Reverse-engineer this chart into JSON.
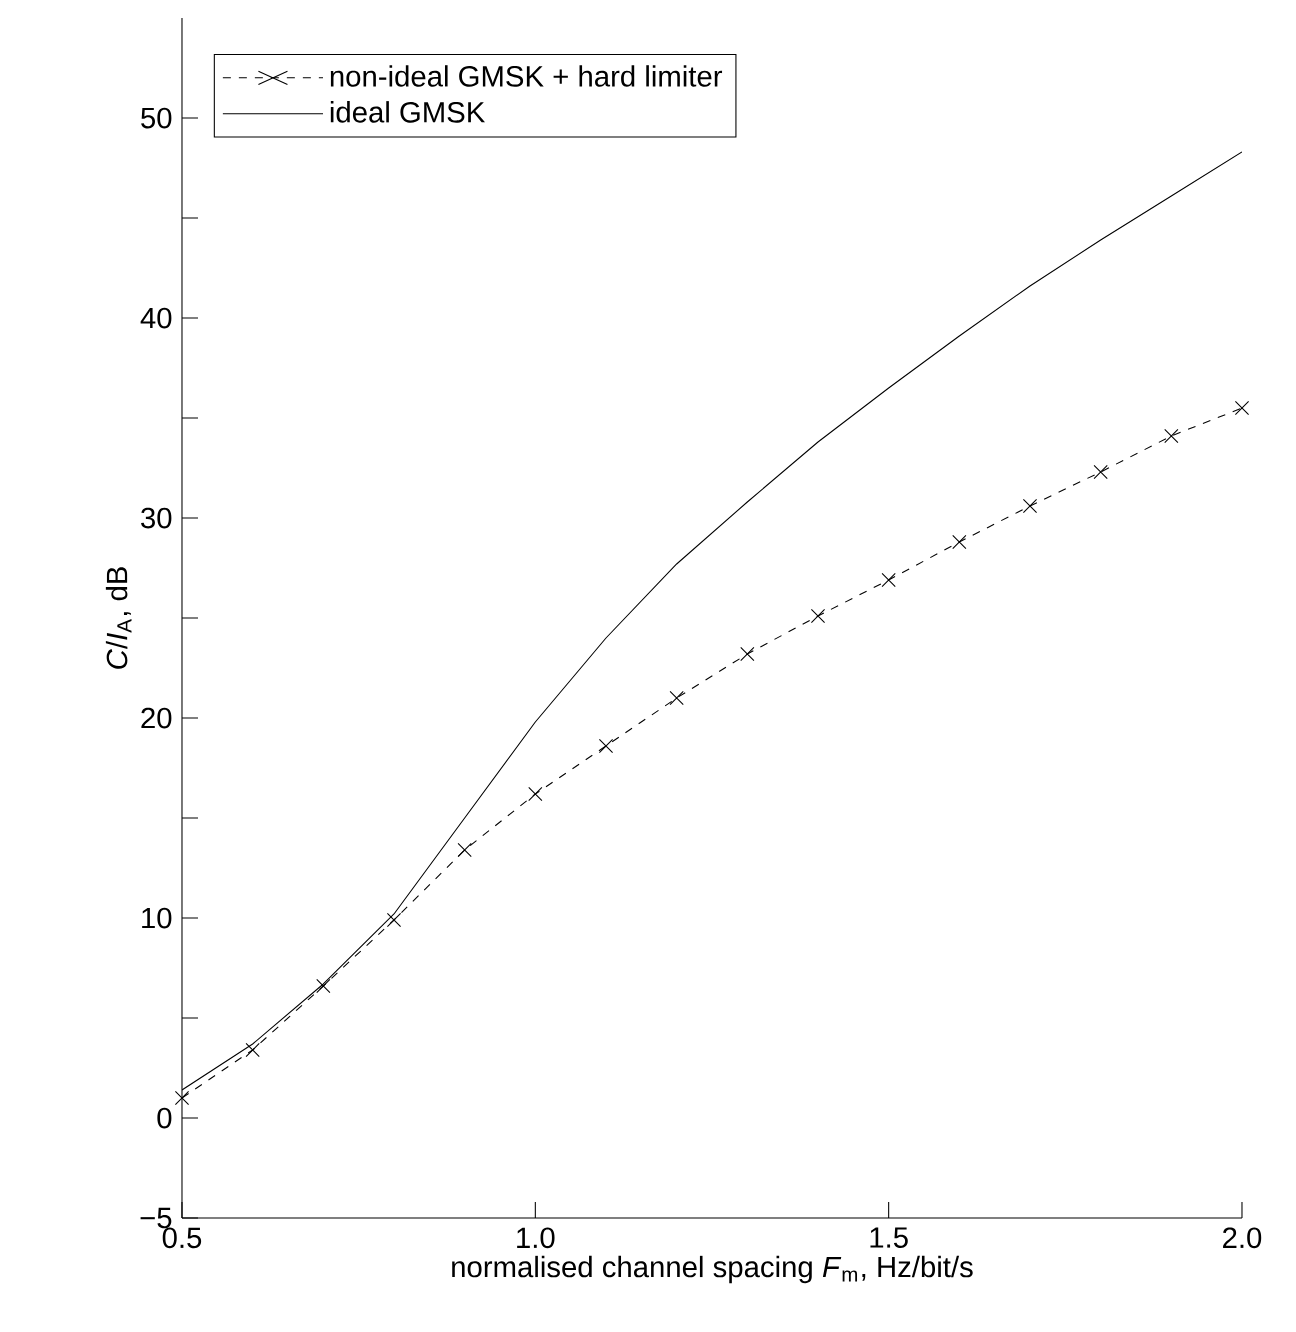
{
  "chart_data": {
    "type": "line",
    "xlabel": "normalised channel spacing *F*$_{m}$, Hz/bit/s",
    "ylabel": "*C*/*I*$_{A}$, dB",
    "x": [
      0.5,
      0.6,
      0.7,
      0.8,
      0.9,
      1.0,
      1.1,
      1.2,
      1.3,
      1.4,
      1.5,
      1.6,
      1.7,
      1.8,
      1.9,
      2.0
    ],
    "series": [
      {
        "name": "non-ideal GMSK + hard limiter",
        "color": "#000000",
        "marker": "cross",
        "line_style": "dashed",
        "values": [
          1.0,
          3.4,
          6.6,
          9.9,
          13.4,
          16.2,
          18.6,
          21.0,
          23.2,
          25.1,
          26.9,
          28.8,
          30.6,
          32.3,
          34.1,
          35.5
        ]
      },
      {
        "name": "ideal GMSK",
        "color": "#000000",
        "marker": "none",
        "line_style": "solid",
        "values": [
          1.4,
          3.7,
          6.7,
          10.2,
          15.0,
          19.8,
          24.0,
          27.7,
          30.8,
          33.8,
          36.5,
          39.1,
          41.6,
          43.9,
          46.1,
          48.3
        ]
      }
    ],
    "xlim": [
      0.5,
      2.0
    ],
    "xticks": [
      0.5,
      {
        "value": 1.0,
        "label": "1.0"
      },
      1.5,
      {
        "value": 2.0,
        "label": "2.0"
      }
    ],
    "ylim": [
      -5,
      55
    ],
    "yticks": [
      {
        "value": -5,
        "label": "−5"
      },
      0,
      {
        "value": 5,
        "label": null
      },
      10,
      {
        "value": 15,
        "label": null
      },
      20,
      {
        "value": 25,
        "label": null
      },
      30,
      {
        "value": 35,
        "label": null
      },
      40,
      {
        "value": 45,
        "label": null
      },
      50
    ],
    "grid": false,
    "legend": "top left"
  }
}
